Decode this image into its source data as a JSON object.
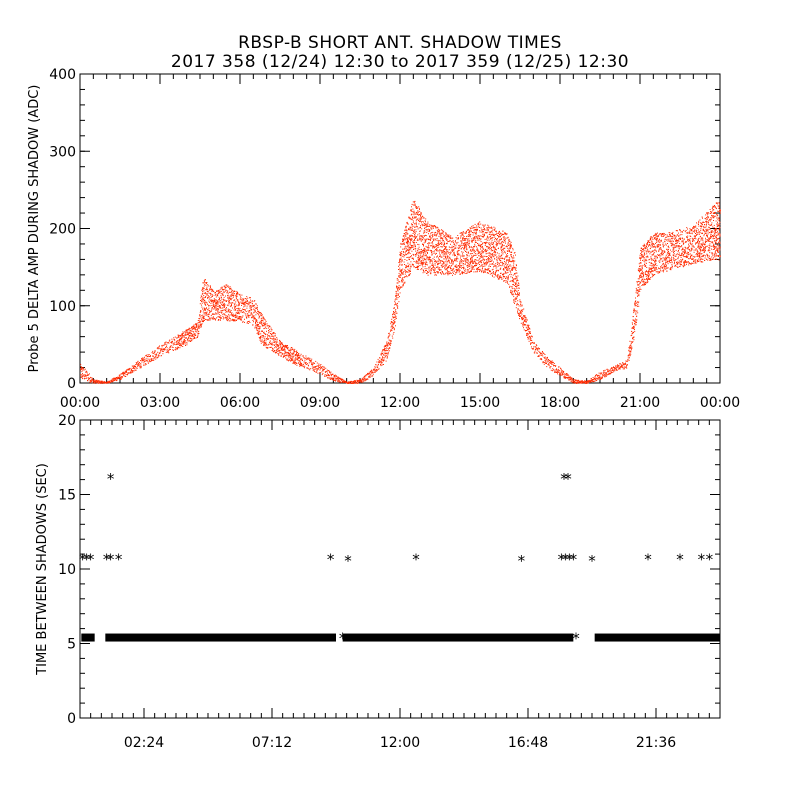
{
  "header": {
    "title": "RBSP-B SHORT ANT. SHADOW TIMES",
    "subtitle": "2017 358 (12/24) 12:30 to 2017 359 (12/25) 12:30"
  },
  "colors": {
    "amplitude_points": "#ff2a00",
    "shadow_markers": "#000000",
    "axes": "#000000"
  },
  "chart_data": [
    {
      "type": "scatter",
      "ylabel": "Probe 5 DELTA AMP DURING SHADOW (ADC)",
      "xlabel": "",
      "x_units": "hours",
      "xlim": [
        0,
        24
      ],
      "ylim": [
        0,
        400
      ],
      "yticks": [
        0,
        100,
        200,
        300,
        400
      ],
      "xtick_values": [
        0,
        3,
        6,
        9,
        12,
        15,
        18,
        21,
        24
      ],
      "xtick_labels": [
        "00:00",
        "03:00",
        "06:00",
        "09:00",
        "12:00",
        "15:00",
        "18:00",
        "21:00",
        "00:00"
      ],
      "series": [
        {
          "envelope_lower": [
            [
              0,
              5
            ],
            [
              0.5,
              0
            ],
            [
              1,
              0
            ],
            [
              1.5,
              5
            ],
            [
              2,
              15
            ],
            [
              3,
              35
            ],
            [
              4,
              50
            ],
            [
              4.4,
              60
            ],
            [
              4.6,
              80
            ],
            [
              5,
              82
            ],
            [
              6,
              80
            ],
            [
              6.5,
              75
            ],
            [
              6.8,
              50
            ],
            [
              7.5,
              35
            ],
            [
              8,
              25
            ],
            [
              9,
              12
            ],
            [
              9.5,
              3
            ],
            [
              10,
              0
            ],
            [
              10.5,
              0
            ],
            [
              11,
              10
            ],
            [
              11.5,
              30
            ],
            [
              11.8,
              70
            ],
            [
              12,
              120
            ],
            [
              12.5,
              150
            ],
            [
              13,
              140
            ],
            [
              14,
              140
            ],
            [
              15,
              145
            ],
            [
              16,
              130
            ],
            [
              16.5,
              80
            ],
            [
              17,
              40
            ],
            [
              17.5,
              20
            ],
            [
              18,
              10
            ],
            [
              18.5,
              0
            ],
            [
              19,
              0
            ],
            [
              19.5,
              5
            ],
            [
              20,
              15
            ],
            [
              20.5,
              20
            ],
            [
              20.8,
              60
            ],
            [
              21,
              120
            ],
            [
              21.5,
              140
            ],
            [
              22,
              145
            ],
            [
              23,
              155
            ],
            [
              24,
              160
            ]
          ],
          "envelope_upper": [
            [
              0,
              25
            ],
            [
              0.3,
              15
            ],
            [
              0.5,
              5
            ],
            [
              1,
              2
            ],
            [
              1.5,
              12
            ],
            [
              2,
              25
            ],
            [
              3,
              50
            ],
            [
              4,
              70
            ],
            [
              4.4,
              80
            ],
            [
              4.6,
              140
            ],
            [
              5,
              120
            ],
            [
              5.5,
              130
            ],
            [
              6,
              115
            ],
            [
              6.5,
              110
            ],
            [
              6.8,
              90
            ],
            [
              7.5,
              55
            ],
            [
              8,
              45
            ],
            [
              9,
              25
            ],
            [
              9.5,
              12
            ],
            [
              10,
              2
            ],
            [
              10.5,
              5
            ],
            [
              11,
              20
            ],
            [
              11.5,
              55
            ],
            [
              11.8,
              110
            ],
            [
              12,
              180
            ],
            [
              12.5,
              240
            ],
            [
              13,
              210
            ],
            [
              14,
              190
            ],
            [
              14.5,
              200
            ],
            [
              15,
              210
            ],
            [
              16,
              195
            ],
            [
              16.3,
              170
            ],
            [
              16.5,
              110
            ],
            [
              17,
              55
            ],
            [
              17.5,
              35
            ],
            [
              18,
              20
            ],
            [
              18.5,
              5
            ],
            [
              19,
              3
            ],
            [
              19.5,
              15
            ],
            [
              20,
              22
            ],
            [
              20.5,
              30
            ],
            [
              20.8,
              110
            ],
            [
              21,
              175
            ],
            [
              21.5,
              195
            ],
            [
              22,
              195
            ],
            [
              23,
              205
            ],
            [
              24,
              240
            ]
          ]
        }
      ]
    },
    {
      "type": "scatter",
      "ylabel": "TIME BETWEEN SHADOWS (SEC)",
      "xlabel": "",
      "x_units": "hours",
      "xlim": [
        0,
        24
      ],
      "ylim": [
        0,
        20
      ],
      "yticks": [
        0,
        5,
        10,
        15,
        20
      ],
      "xtick_values": [
        2.4,
        7.2,
        12.0,
        16.8,
        21.6
      ],
      "xtick_labels": [
        "02:24",
        "07:12",
        "12:00",
        "16:48",
        "21:36"
      ],
      "marker": "asterisk",
      "series": [
        {
          "baseline_value": 5.4,
          "baseline_segments": [
            [
              0.05,
              0.55
            ],
            [
              0.95,
              9.6
            ],
            [
              9.85,
              18.5
            ],
            [
              19.3,
              24
            ]
          ],
          "points": [
            {
              "x": 0.1,
              "y": 10.7
            },
            {
              "x": 0.25,
              "y": 10.7
            },
            {
              "x": 0.4,
              "y": 10.7
            },
            {
              "x": 1.0,
              "y": 10.7
            },
            {
              "x": 1.15,
              "y": 10.7
            },
            {
              "x": 1.45,
              "y": 10.7
            },
            {
              "x": 1.15,
              "y": 16.1
            },
            {
              "x": 9.4,
              "y": 10.7
            },
            {
              "x": 10.05,
              "y": 10.6
            },
            {
              "x": 12.6,
              "y": 10.7
            },
            {
              "x": 16.55,
              "y": 10.6
            },
            {
              "x": 18.05,
              "y": 10.7
            },
            {
              "x": 18.2,
              "y": 10.7
            },
            {
              "x": 18.35,
              "y": 10.7
            },
            {
              "x": 18.5,
              "y": 10.7
            },
            {
              "x": 18.15,
              "y": 16.1
            },
            {
              "x": 18.3,
              "y": 16.1
            },
            {
              "x": 19.2,
              "y": 10.6
            },
            {
              "x": 21.3,
              "y": 10.7
            },
            {
              "x": 22.5,
              "y": 10.7
            },
            {
              "x": 23.3,
              "y": 10.7
            },
            {
              "x": 23.6,
              "y": 10.7
            },
            {
              "x": 9.85,
              "y": 5.4
            },
            {
              "x": 18.6,
              "y": 5.4
            }
          ]
        }
      ]
    }
  ]
}
